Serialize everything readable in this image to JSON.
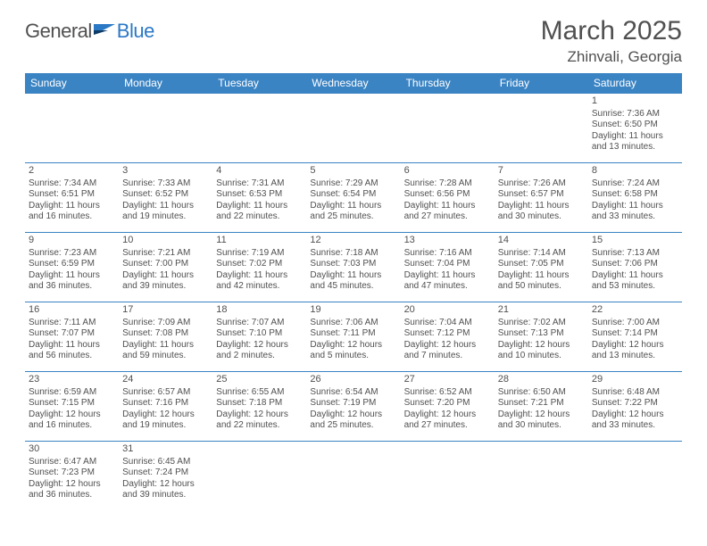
{
  "logo": {
    "general": "General",
    "blue": "Blue"
  },
  "title": "March 2025",
  "location": "Zhinvali, Georgia",
  "header_color": "#3b84c4",
  "text_color": "#505050",
  "border_color": "#3b84c4",
  "days_of_week": [
    "Sunday",
    "Monday",
    "Tuesday",
    "Wednesday",
    "Thursday",
    "Friday",
    "Saturday"
  ],
  "weeks": [
    [
      null,
      null,
      null,
      null,
      null,
      null,
      {
        "n": "1",
        "sr": "Sunrise: 7:36 AM",
        "ss": "Sunset: 6:50 PM",
        "dl1": "Daylight: 11 hours",
        "dl2": "and 13 minutes."
      }
    ],
    [
      {
        "n": "2",
        "sr": "Sunrise: 7:34 AM",
        "ss": "Sunset: 6:51 PM",
        "dl1": "Daylight: 11 hours",
        "dl2": "and 16 minutes."
      },
      {
        "n": "3",
        "sr": "Sunrise: 7:33 AM",
        "ss": "Sunset: 6:52 PM",
        "dl1": "Daylight: 11 hours",
        "dl2": "and 19 minutes."
      },
      {
        "n": "4",
        "sr": "Sunrise: 7:31 AM",
        "ss": "Sunset: 6:53 PM",
        "dl1": "Daylight: 11 hours",
        "dl2": "and 22 minutes."
      },
      {
        "n": "5",
        "sr": "Sunrise: 7:29 AM",
        "ss": "Sunset: 6:54 PM",
        "dl1": "Daylight: 11 hours",
        "dl2": "and 25 minutes."
      },
      {
        "n": "6",
        "sr": "Sunrise: 7:28 AM",
        "ss": "Sunset: 6:56 PM",
        "dl1": "Daylight: 11 hours",
        "dl2": "and 27 minutes."
      },
      {
        "n": "7",
        "sr": "Sunrise: 7:26 AM",
        "ss": "Sunset: 6:57 PM",
        "dl1": "Daylight: 11 hours",
        "dl2": "and 30 minutes."
      },
      {
        "n": "8",
        "sr": "Sunrise: 7:24 AM",
        "ss": "Sunset: 6:58 PM",
        "dl1": "Daylight: 11 hours",
        "dl2": "and 33 minutes."
      }
    ],
    [
      {
        "n": "9",
        "sr": "Sunrise: 7:23 AM",
        "ss": "Sunset: 6:59 PM",
        "dl1": "Daylight: 11 hours",
        "dl2": "and 36 minutes."
      },
      {
        "n": "10",
        "sr": "Sunrise: 7:21 AM",
        "ss": "Sunset: 7:00 PM",
        "dl1": "Daylight: 11 hours",
        "dl2": "and 39 minutes."
      },
      {
        "n": "11",
        "sr": "Sunrise: 7:19 AM",
        "ss": "Sunset: 7:02 PM",
        "dl1": "Daylight: 11 hours",
        "dl2": "and 42 minutes."
      },
      {
        "n": "12",
        "sr": "Sunrise: 7:18 AM",
        "ss": "Sunset: 7:03 PM",
        "dl1": "Daylight: 11 hours",
        "dl2": "and 45 minutes."
      },
      {
        "n": "13",
        "sr": "Sunrise: 7:16 AM",
        "ss": "Sunset: 7:04 PM",
        "dl1": "Daylight: 11 hours",
        "dl2": "and 47 minutes."
      },
      {
        "n": "14",
        "sr": "Sunrise: 7:14 AM",
        "ss": "Sunset: 7:05 PM",
        "dl1": "Daylight: 11 hours",
        "dl2": "and 50 minutes."
      },
      {
        "n": "15",
        "sr": "Sunrise: 7:13 AM",
        "ss": "Sunset: 7:06 PM",
        "dl1": "Daylight: 11 hours",
        "dl2": "and 53 minutes."
      }
    ],
    [
      {
        "n": "16",
        "sr": "Sunrise: 7:11 AM",
        "ss": "Sunset: 7:07 PM",
        "dl1": "Daylight: 11 hours",
        "dl2": "and 56 minutes."
      },
      {
        "n": "17",
        "sr": "Sunrise: 7:09 AM",
        "ss": "Sunset: 7:08 PM",
        "dl1": "Daylight: 11 hours",
        "dl2": "and 59 minutes."
      },
      {
        "n": "18",
        "sr": "Sunrise: 7:07 AM",
        "ss": "Sunset: 7:10 PM",
        "dl1": "Daylight: 12 hours",
        "dl2": "and 2 minutes."
      },
      {
        "n": "19",
        "sr": "Sunrise: 7:06 AM",
        "ss": "Sunset: 7:11 PM",
        "dl1": "Daylight: 12 hours",
        "dl2": "and 5 minutes."
      },
      {
        "n": "20",
        "sr": "Sunrise: 7:04 AM",
        "ss": "Sunset: 7:12 PM",
        "dl1": "Daylight: 12 hours",
        "dl2": "and 7 minutes."
      },
      {
        "n": "21",
        "sr": "Sunrise: 7:02 AM",
        "ss": "Sunset: 7:13 PM",
        "dl1": "Daylight: 12 hours",
        "dl2": "and 10 minutes."
      },
      {
        "n": "22",
        "sr": "Sunrise: 7:00 AM",
        "ss": "Sunset: 7:14 PM",
        "dl1": "Daylight: 12 hours",
        "dl2": "and 13 minutes."
      }
    ],
    [
      {
        "n": "23",
        "sr": "Sunrise: 6:59 AM",
        "ss": "Sunset: 7:15 PM",
        "dl1": "Daylight: 12 hours",
        "dl2": "and 16 minutes."
      },
      {
        "n": "24",
        "sr": "Sunrise: 6:57 AM",
        "ss": "Sunset: 7:16 PM",
        "dl1": "Daylight: 12 hours",
        "dl2": "and 19 minutes."
      },
      {
        "n": "25",
        "sr": "Sunrise: 6:55 AM",
        "ss": "Sunset: 7:18 PM",
        "dl1": "Daylight: 12 hours",
        "dl2": "and 22 minutes."
      },
      {
        "n": "26",
        "sr": "Sunrise: 6:54 AM",
        "ss": "Sunset: 7:19 PM",
        "dl1": "Daylight: 12 hours",
        "dl2": "and 25 minutes."
      },
      {
        "n": "27",
        "sr": "Sunrise: 6:52 AM",
        "ss": "Sunset: 7:20 PM",
        "dl1": "Daylight: 12 hours",
        "dl2": "and 27 minutes."
      },
      {
        "n": "28",
        "sr": "Sunrise: 6:50 AM",
        "ss": "Sunset: 7:21 PM",
        "dl1": "Daylight: 12 hours",
        "dl2": "and 30 minutes."
      },
      {
        "n": "29",
        "sr": "Sunrise: 6:48 AM",
        "ss": "Sunset: 7:22 PM",
        "dl1": "Daylight: 12 hours",
        "dl2": "and 33 minutes."
      }
    ],
    [
      {
        "n": "30",
        "sr": "Sunrise: 6:47 AM",
        "ss": "Sunset: 7:23 PM",
        "dl1": "Daylight: 12 hours",
        "dl2": "and 36 minutes."
      },
      {
        "n": "31",
        "sr": "Sunrise: 6:45 AM",
        "ss": "Sunset: 7:24 PM",
        "dl1": "Daylight: 12 hours",
        "dl2": "and 39 minutes."
      },
      null,
      null,
      null,
      null,
      null
    ]
  ]
}
